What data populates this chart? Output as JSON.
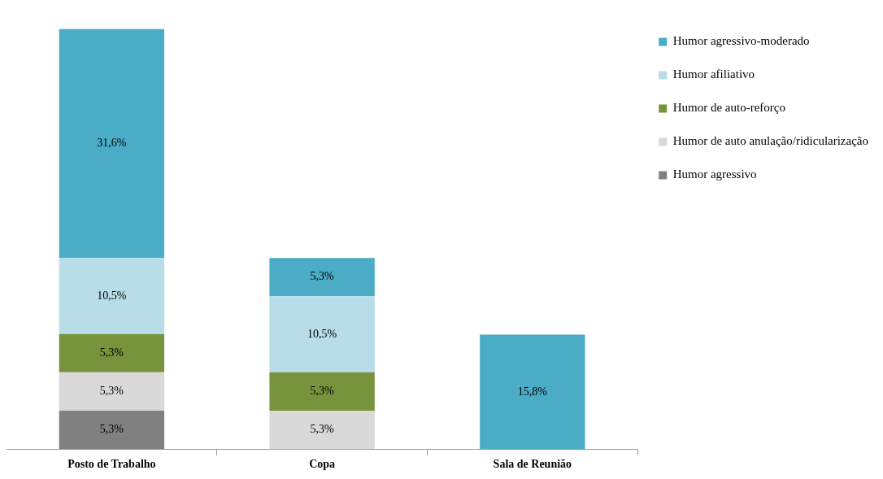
{
  "chart_data": {
    "type": "bar",
    "stacked": true,
    "categories": [
      "Posto de Trabalho",
      "Copa",
      "Sala de Reunião"
    ],
    "series": [
      {
        "name": "Humor agressivo",
        "color": "#808080",
        "values": [
          5.3,
          null,
          null
        ],
        "value_labels": [
          "5,3%",
          null,
          null
        ]
      },
      {
        "name": "Humor de auto anulação/ridicularização",
        "color": "#d9d9d9",
        "values": [
          5.3,
          5.3,
          null
        ],
        "value_labels": [
          "5,3%",
          "5,3%",
          null
        ]
      },
      {
        "name": "Humor de auto-reforço",
        "color": "#77933c",
        "values": [
          5.3,
          5.3,
          null
        ],
        "value_labels": [
          "5,3%",
          "5,3%",
          null
        ]
      },
      {
        "name": "Humor afiliativo",
        "color": "#b7dde8",
        "values": [
          10.5,
          10.5,
          null
        ],
        "value_labels": [
          "10,5%",
          "10,5%",
          null
        ]
      },
      {
        "name": "Humor agressivo-moderado",
        "color": "#4bacc6",
        "values": [
          31.6,
          5.3,
          15.8
        ],
        "value_labels": [
          "31,6%",
          "5,3%",
          "15,8%"
        ]
      }
    ],
    "legend": "top right",
    "grid": false
  }
}
